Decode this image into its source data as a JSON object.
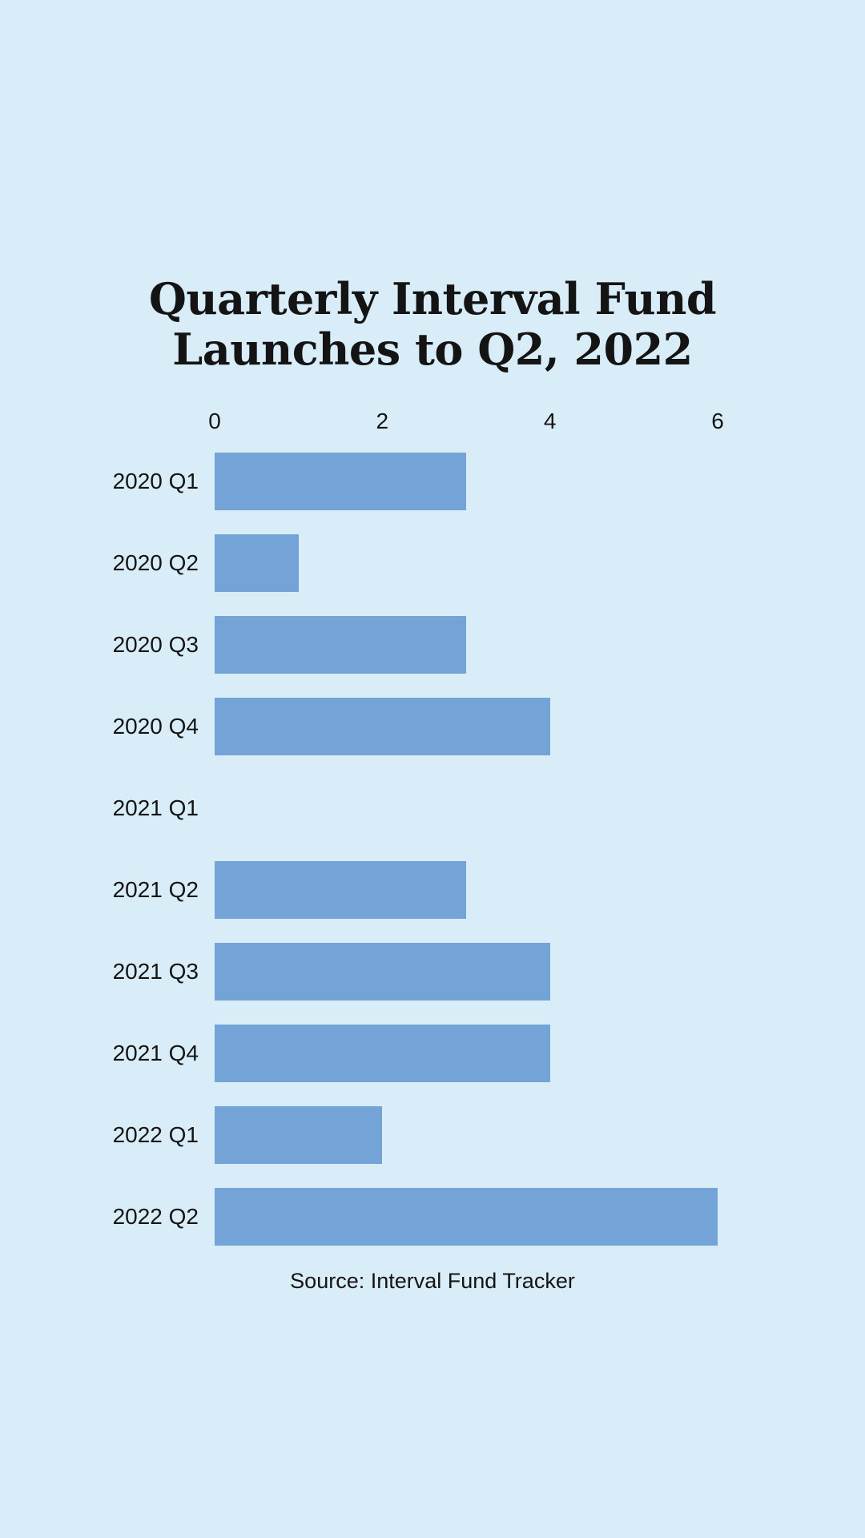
{
  "page": {
    "background_color": "#d9edf8",
    "text_color": "#141414"
  },
  "chart_data": {
    "type": "bar",
    "orientation": "horizontal",
    "title": "Quarterly Interval Fund Launches to Q2, 2022",
    "title_lines": [
      "Quarterly Interval Fund",
      "Launches to Q2, 2022"
    ],
    "categories": [
      "2020 Q1",
      "2020 Q2",
      "2020 Q3",
      "2020 Q4",
      "2021 Q1",
      "2021 Q2",
      "2021 Q3",
      "2021 Q4",
      "2022 Q1",
      "2022 Q2"
    ],
    "values": [
      3,
      1,
      3,
      4,
      0,
      3,
      4,
      4,
      2,
      6
    ],
    "xlim": [
      0,
      6
    ],
    "x_ticks": [
      0,
      2,
      4,
      6
    ],
    "grid": false,
    "legend": false,
    "bar_color": "#74a3d8",
    "source": "Source: Interval Fund Tracker"
  }
}
